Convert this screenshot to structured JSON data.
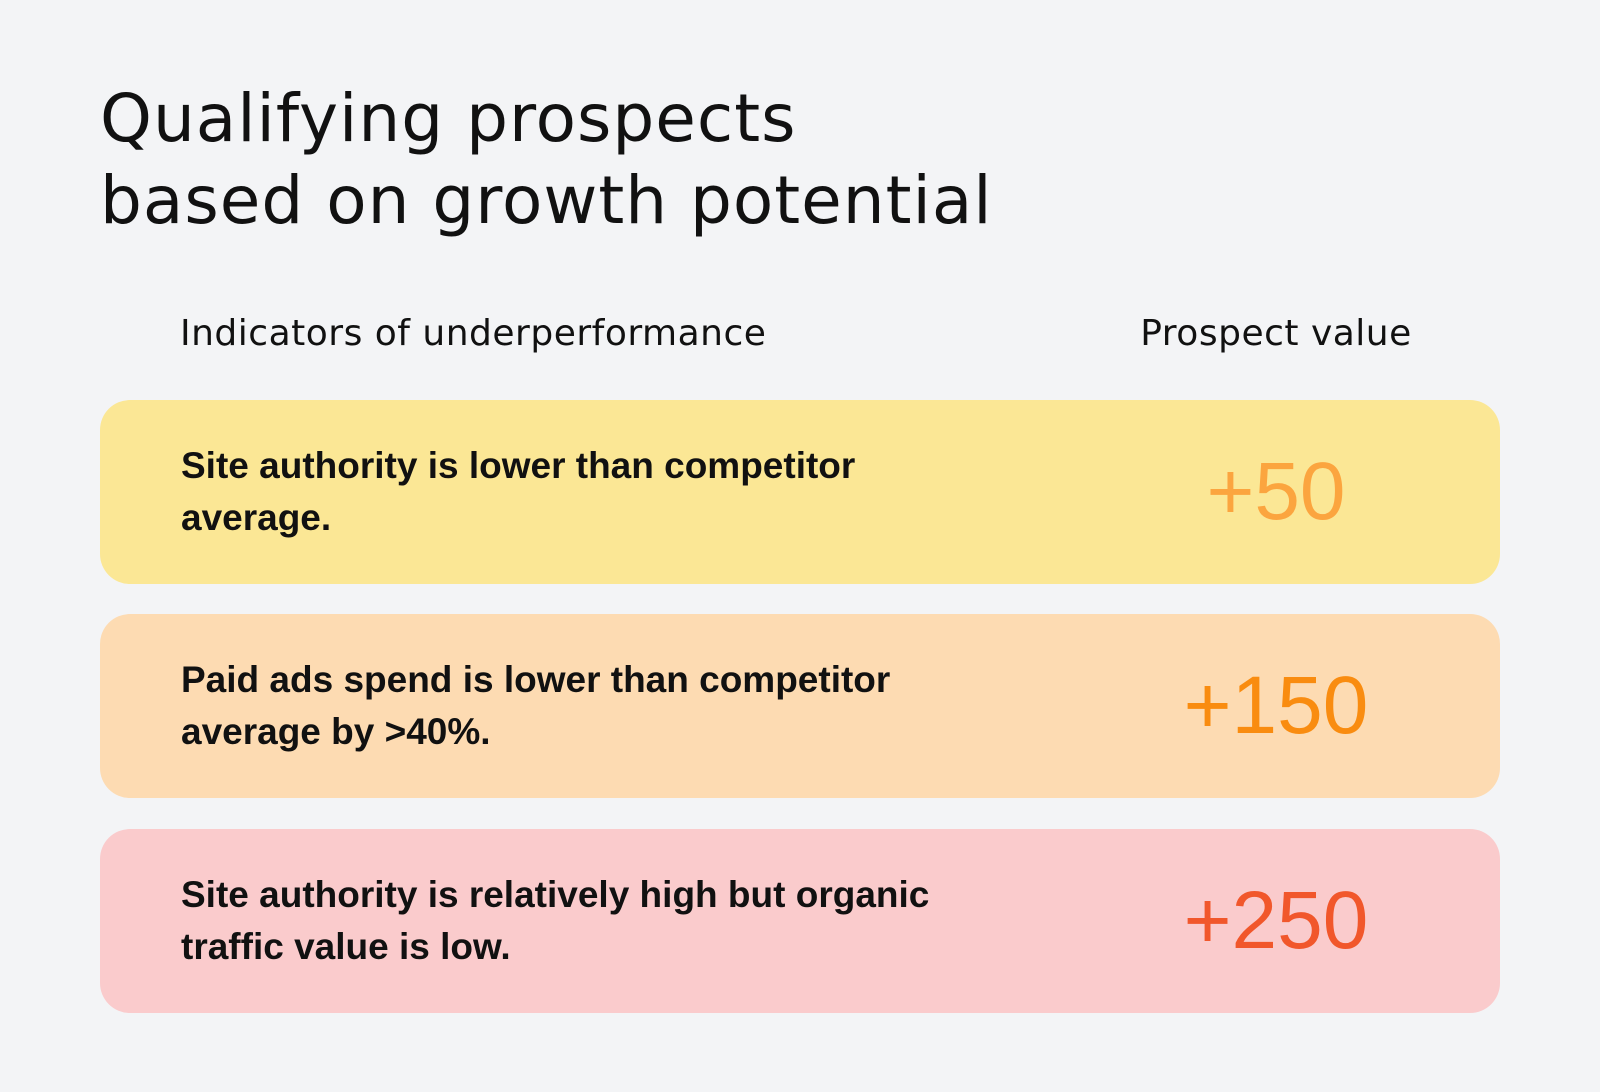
{
  "header": {
    "title": [
      "Qualifying prospects",
      "based on growth potential"
    ]
  },
  "table": {
    "columns": [
      "Indicators of underperformance",
      "Prospect value"
    ],
    "rows": [
      {
        "indicator": [
          "Site authority is lower than competitor",
          "average."
        ],
        "value": "+50",
        "background": "#fbe795",
        "color": "#fba53f"
      },
      {
        "indicator": [
          "Paid ads spend is lower than competitor",
          "average by >40%."
        ],
        "value": "+150",
        "background": "#fddbb2",
        "color": "#f98c10"
      },
      {
        "indicator": [
          "Site authority is relatively high but organic",
          "traffic value is low."
        ],
        "value": "+250",
        "background": "#facbcc",
        "color": "#f1572b"
      }
    ]
  }
}
